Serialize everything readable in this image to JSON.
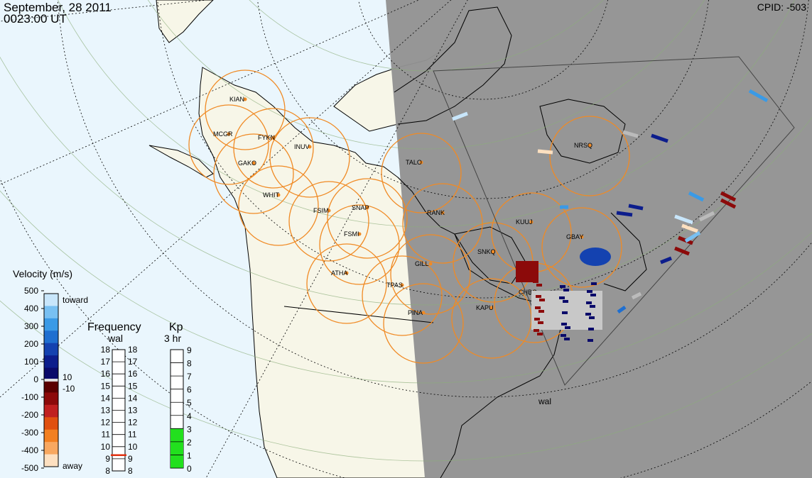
{
  "header": {
    "date": "September, 28 2011",
    "time": "0023:00 UT",
    "cpid": "CPID:  -503"
  },
  "map": {
    "land_color": "#f7f6e8",
    "ocean_color": "#eaf6fd",
    "night_color": "#939393",
    "fov_circle_color": "#f08a24",
    "stations": [
      {
        "code": "KIAN"
      },
      {
        "code": "MCGR"
      },
      {
        "code": "FYKN"
      },
      {
        "code": "INUV"
      },
      {
        "code": "GAKO"
      },
      {
        "code": "WHIT"
      },
      {
        "code": "FSIM"
      },
      {
        "code": "SNAP"
      },
      {
        "code": "FSMI"
      },
      {
        "code": "ATHA"
      },
      {
        "code": "TPAS"
      },
      {
        "code": "GILL"
      },
      {
        "code": "RANK"
      },
      {
        "code": "TALO"
      },
      {
        "code": "KUUJ"
      },
      {
        "code": "GBAY"
      },
      {
        "code": "SNKQ"
      },
      {
        "code": "CHBG"
      },
      {
        "code": "KAPU"
      },
      {
        "code": "PINA"
      },
      {
        "code": "NRSQ"
      }
    ],
    "radar_label": "wal"
  },
  "velocity_legend": {
    "title": "Velocity (m/s)",
    "ticks": [
      "500",
      "400",
      "300",
      "200",
      "100",
      "0",
      "-100",
      "-200",
      "-300",
      "-400",
      "-500"
    ],
    "toward_label": "toward",
    "away_label": "away",
    "pos_threshold": "10",
    "neg_threshold": "-10",
    "colors_toward": [
      "#0a0a6a",
      "#0c1d8c",
      "#1442b0",
      "#1f6fd0",
      "#3a9ae6",
      "#78c0f2",
      "#c8e6fb"
    ],
    "colors_away": [
      "#5a0000",
      "#8c0a0a",
      "#c02020",
      "#e05010",
      "#f28020",
      "#f8a860",
      "#fde0c0"
    ]
  },
  "frequency_legend": {
    "title": "Frequency",
    "subtitle": "wal",
    "labels": [
      "18",
      "17",
      "16",
      "15",
      "14",
      "13",
      "12",
      "11",
      "10",
      "9",
      "8"
    ],
    "current_mhz": 9.3
  },
  "kp_legend": {
    "title": "Kp",
    "subtitle": "3 hr",
    "labels": [
      "9",
      "8",
      "7",
      "6",
      "5",
      "4",
      "3",
      "2",
      "1",
      "0"
    ],
    "value": 3,
    "fill_color": "#22e01e"
  }
}
